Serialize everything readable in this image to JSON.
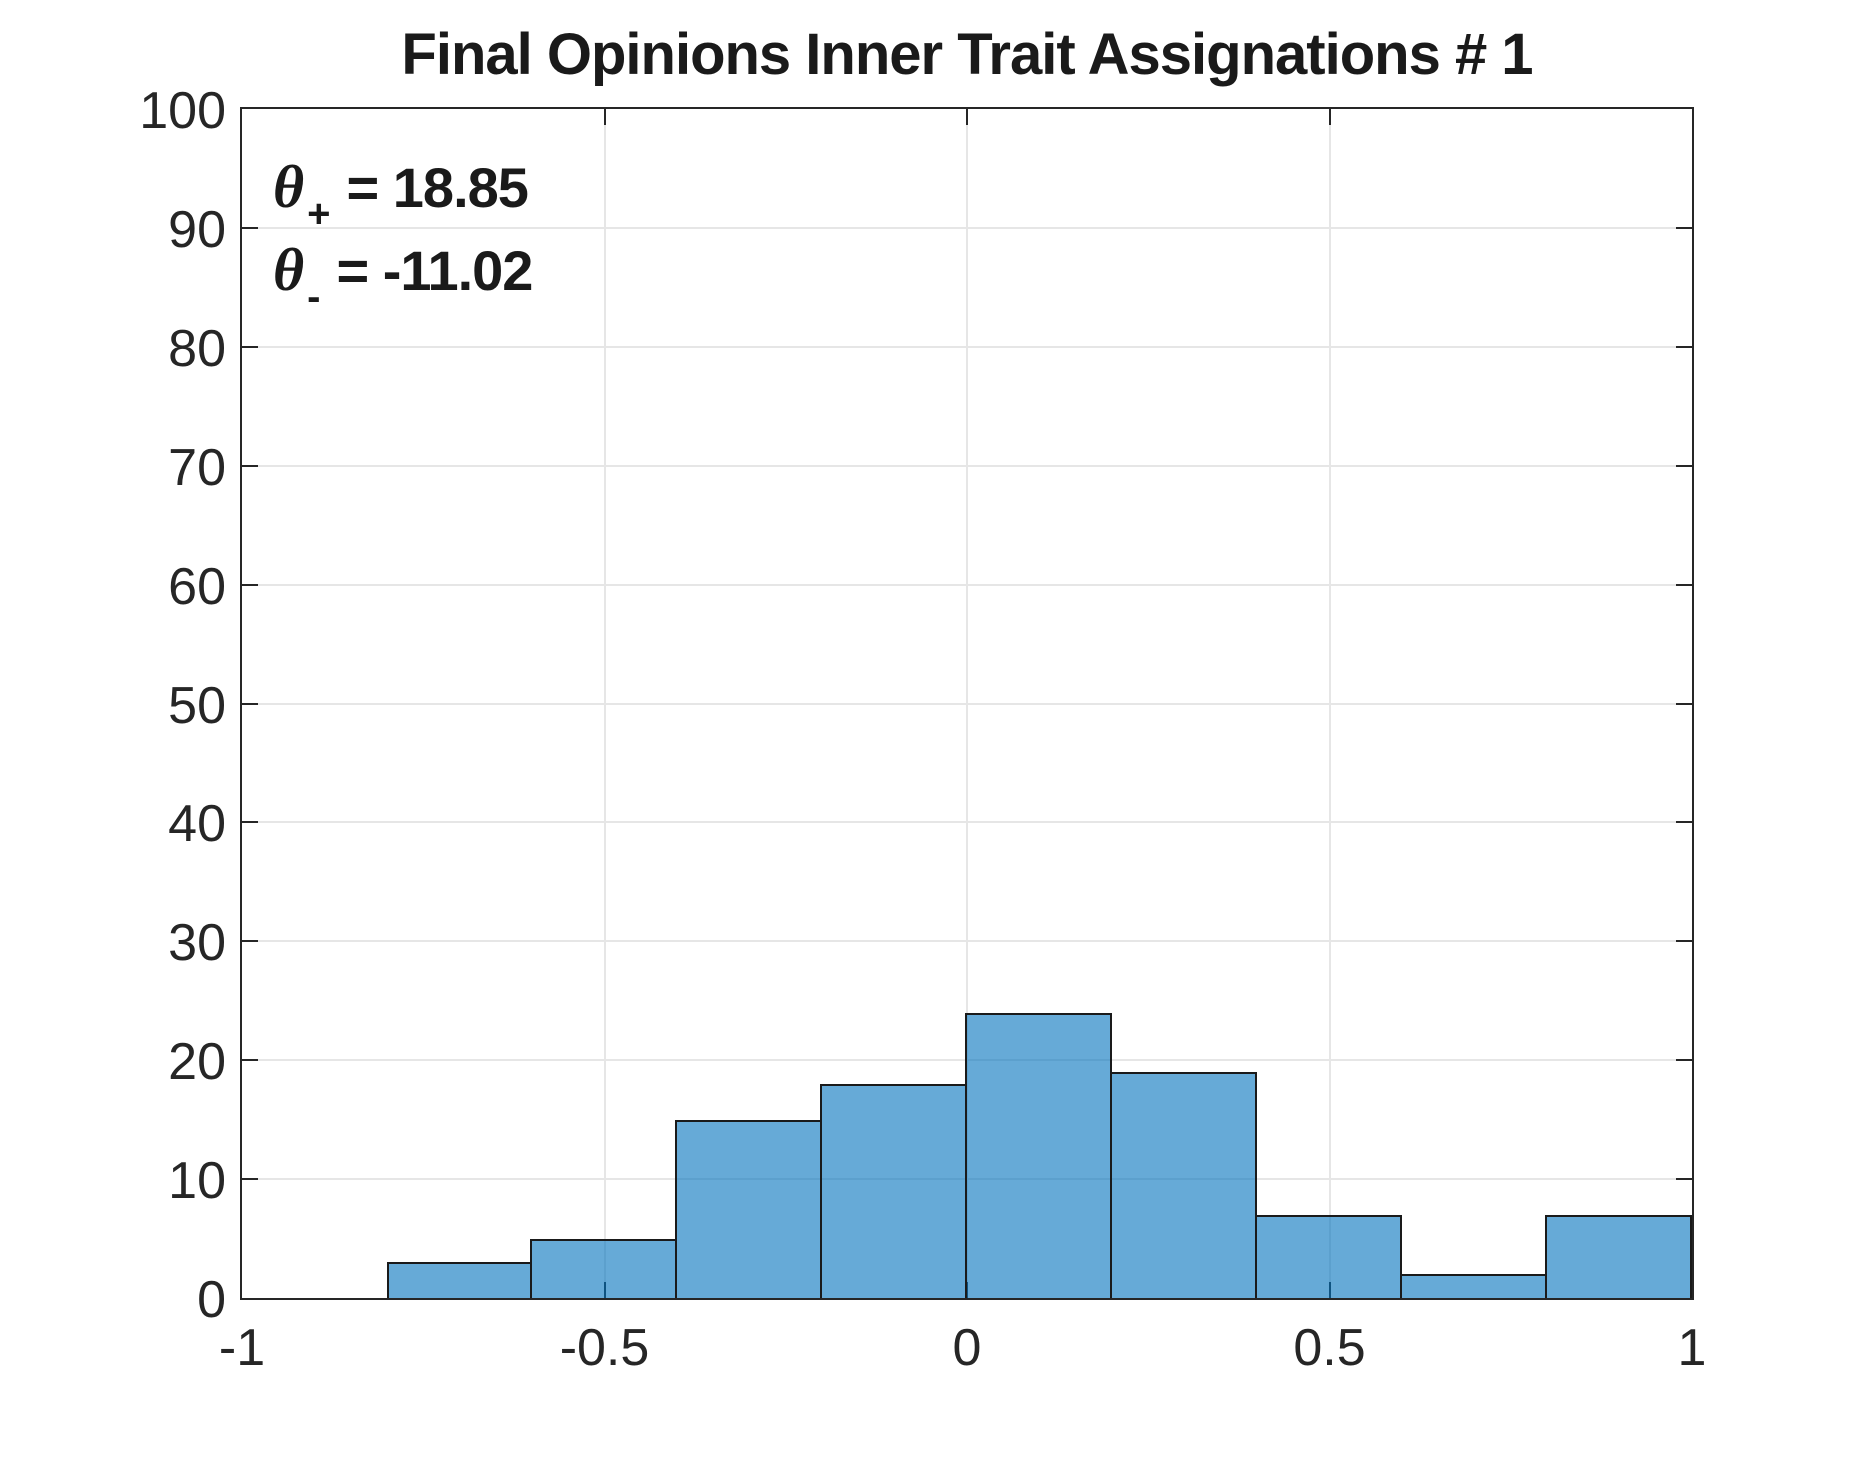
{
  "chart_data": {
    "type": "bar",
    "subtype": "histogram",
    "title": "Final Opinions Inner Trait Assignations # 1",
    "bin_edges": [
      -0.8,
      -0.6,
      -0.4,
      -0.2,
      0,
      0.2,
      0.4,
      0.6,
      0.8,
      1.0
    ],
    "counts": [
      3,
      5,
      15,
      18,
      24,
      19,
      7,
      2,
      7
    ],
    "xlabel": "",
    "ylabel": "",
    "xlim": [
      -1,
      1
    ],
    "ylim": [
      0,
      100
    ],
    "x_tick_values": [
      -1,
      -0.5,
      0,
      0.5,
      1
    ],
    "x_tick_labels": [
      "-1",
      "-0.5",
      "0",
      "0.5",
      "1"
    ],
    "y_tick_values": [
      0,
      10,
      20,
      30,
      40,
      50,
      60,
      70,
      80,
      90,
      100
    ],
    "y_tick_labels": [
      "0",
      "10",
      "20",
      "30",
      "40",
      "50",
      "60",
      "70",
      "80",
      "90",
      "100"
    ],
    "grid": true,
    "x_grid_values": [
      -0.5,
      0,
      0.5
    ],
    "legend": null,
    "annotations": [
      {
        "symbol": "θ",
        "subscript": "+",
        "value": "= 18.85"
      },
      {
        "symbol": "θ",
        "subscript": "-",
        "value": "= -11.02"
      }
    ],
    "colors": {
      "bar_fill": "rgba(0,114,189,0.6)",
      "bar_edge": "#1a1a1a",
      "grid_line": "#e6e6e6",
      "axis_box": "#262626",
      "text": "#262626",
      "background": "#ffffff"
    }
  }
}
